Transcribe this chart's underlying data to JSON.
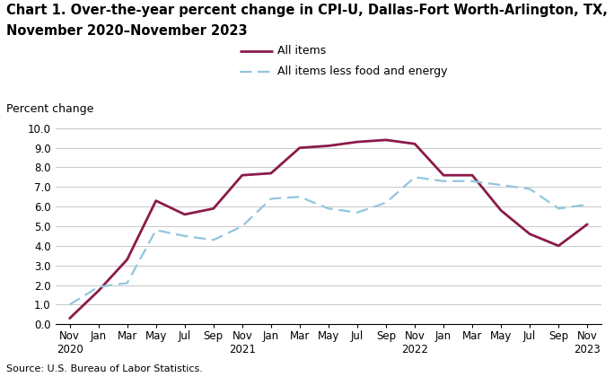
{
  "title_line1": "Chart 1. Over-the-year percent change in CPI-U, Dallas-Fort Worth-Arlington, TX,",
  "title_line2": "November 2020–November 2023",
  "ylabel": "Percent change",
  "source": "Source: U.S. Bureau of Labor Statistics.",
  "ylim": [
    0.0,
    10.0
  ],
  "yticks": [
    0.0,
    1.0,
    2.0,
    3.0,
    4.0,
    5.0,
    6.0,
    7.0,
    8.0,
    9.0,
    10.0
  ],
  "x_labels": [
    "Nov\n2020",
    "Jan",
    "Mar",
    "May",
    "Jul",
    "Sep",
    "Nov\n2021",
    "Jan",
    "Mar",
    "May",
    "Jul",
    "Sep",
    "Nov\n2022",
    "Jan",
    "Mar",
    "May",
    "Jul",
    "Sep",
    "Nov\n2023"
  ],
  "all_items": [
    0.3,
    1.7,
    3.3,
    6.3,
    5.6,
    5.9,
    7.6,
    7.7,
    9.0,
    9.1,
    9.3,
    9.4,
    9.2,
    7.6,
    7.6,
    5.8,
    4.6,
    4.0,
    5.1
  ],
  "core_items": [
    1.0,
    1.9,
    2.1,
    4.8,
    4.5,
    4.3,
    5.0,
    6.4,
    6.5,
    5.9,
    5.7,
    6.2,
    7.5,
    7.3,
    7.3,
    7.1,
    6.9,
    5.9,
    6.1
  ],
  "line1_color": "#8B1A4A",
  "line2_color": "#92C5DE",
  "line1_label": "All items",
  "line2_label": "All items less food and energy",
  "bg_color": "#ffffff",
  "grid_color": "#c8c8c8",
  "title_fontsize": 10.5,
  "label_fontsize": 9,
  "tick_fontsize": 8.5,
  "source_fontsize": 8
}
